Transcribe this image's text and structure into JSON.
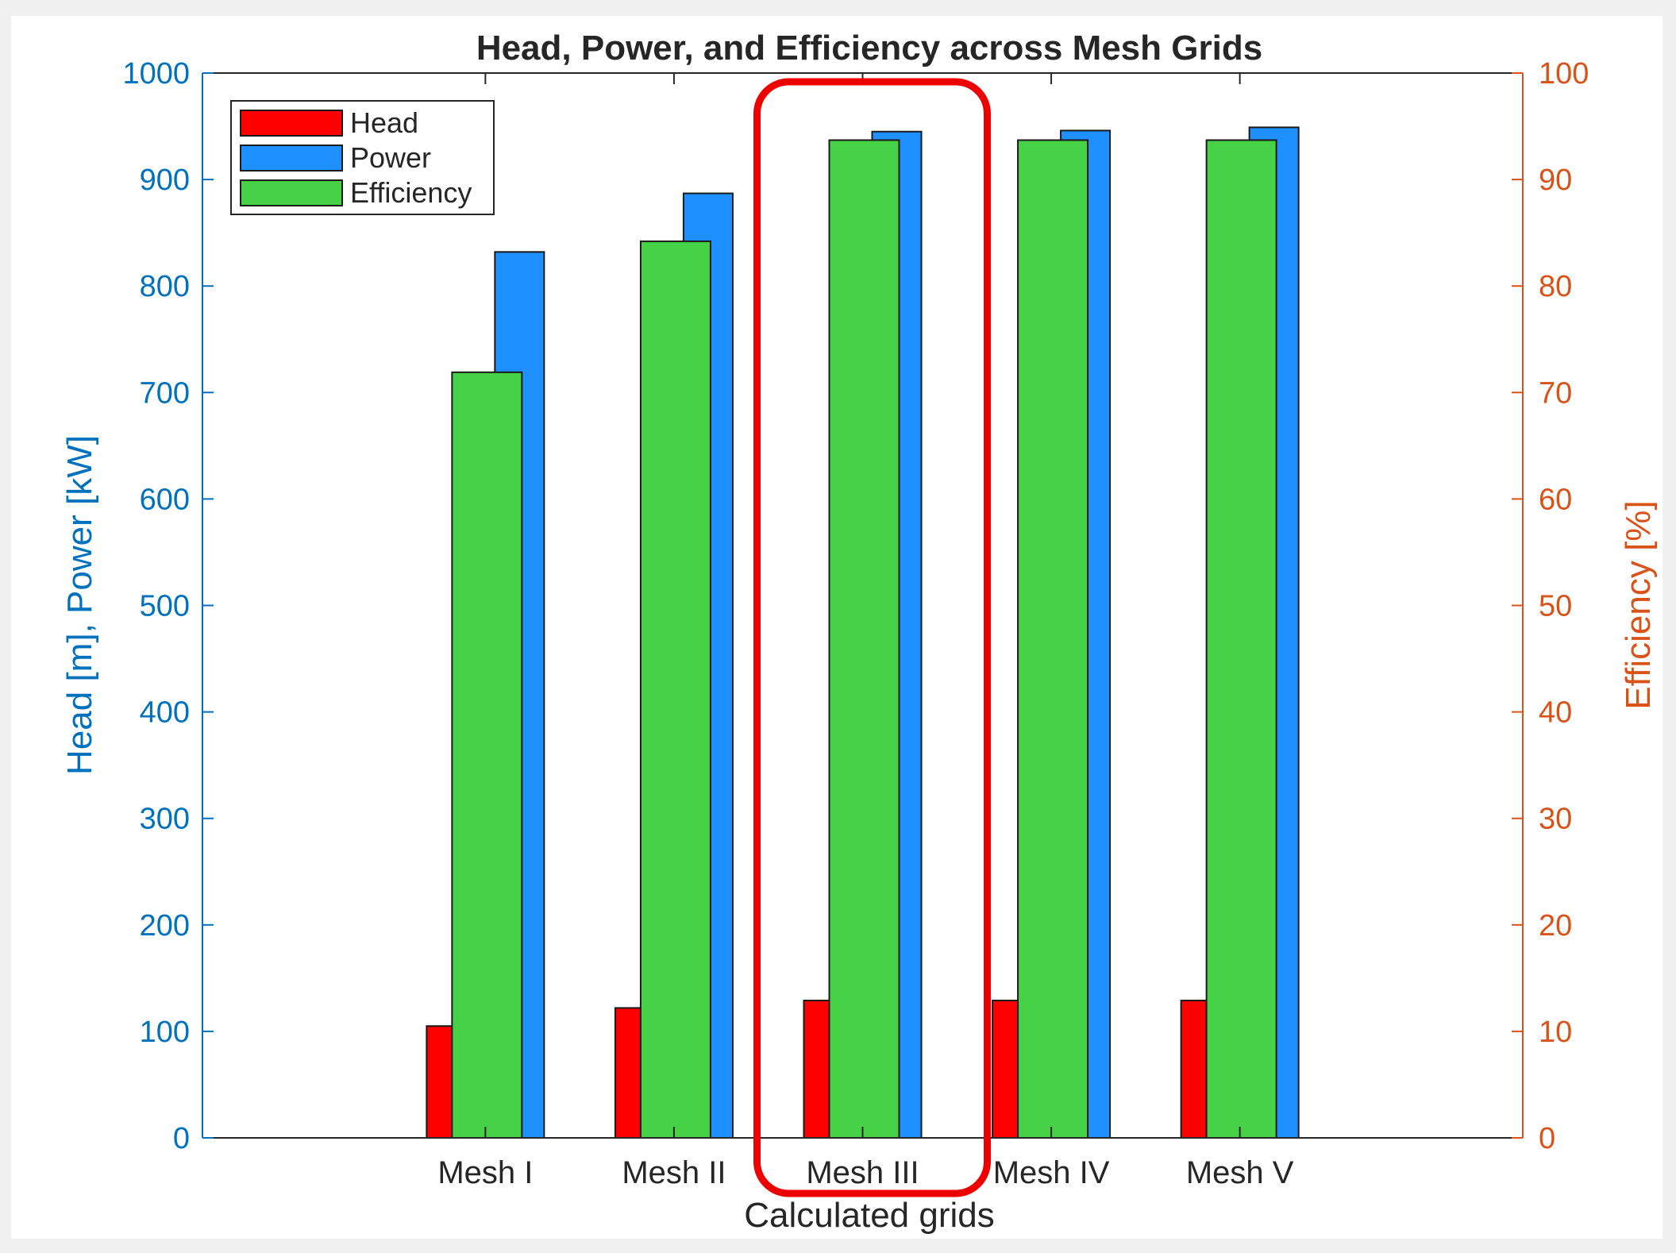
{
  "chart_data": {
    "type": "bar",
    "title": "Head, Power, and Efficiency across Mesh Grids",
    "xlabel": "Calculated grids",
    "ylabel": "Head [m], Power [kW]",
    "y2label": "Efficiency [%]",
    "categories": [
      "Mesh I",
      "Mesh II",
      "Mesh III",
      "Mesh IV",
      "Mesh V"
    ],
    "ylim": [
      0,
      1000
    ],
    "y2lim": [
      0,
      100
    ],
    "yticks": [
      "0",
      "100",
      "200",
      "300",
      "400",
      "500",
      "600",
      "700",
      "800",
      "900",
      "1000"
    ],
    "y2ticks": [
      "0",
      "10",
      "20",
      "30",
      "40",
      "50",
      "60",
      "70",
      "80",
      "90",
      "100"
    ],
    "series": [
      {
        "name": "Head",
        "axis": "left",
        "color": "#ff0000",
        "values": [
          105,
          122,
          129,
          129,
          129
        ]
      },
      {
        "name": "Power",
        "axis": "left",
        "color": "#1e90ff",
        "values": [
          832,
          887,
          945,
          946,
          949
        ]
      },
      {
        "name": "Efficiency",
        "axis": "right",
        "color": "#47d147",
        "values": [
          71.9,
          84.2,
          93.7,
          93.7,
          93.7
        ]
      }
    ],
    "grid": false,
    "legend": "top-left",
    "highlight": {
      "category": "Mesh III",
      "color": "#ee0000"
    },
    "left_axis_color": "#0072bd",
    "right_axis_color": "#d95319"
  }
}
